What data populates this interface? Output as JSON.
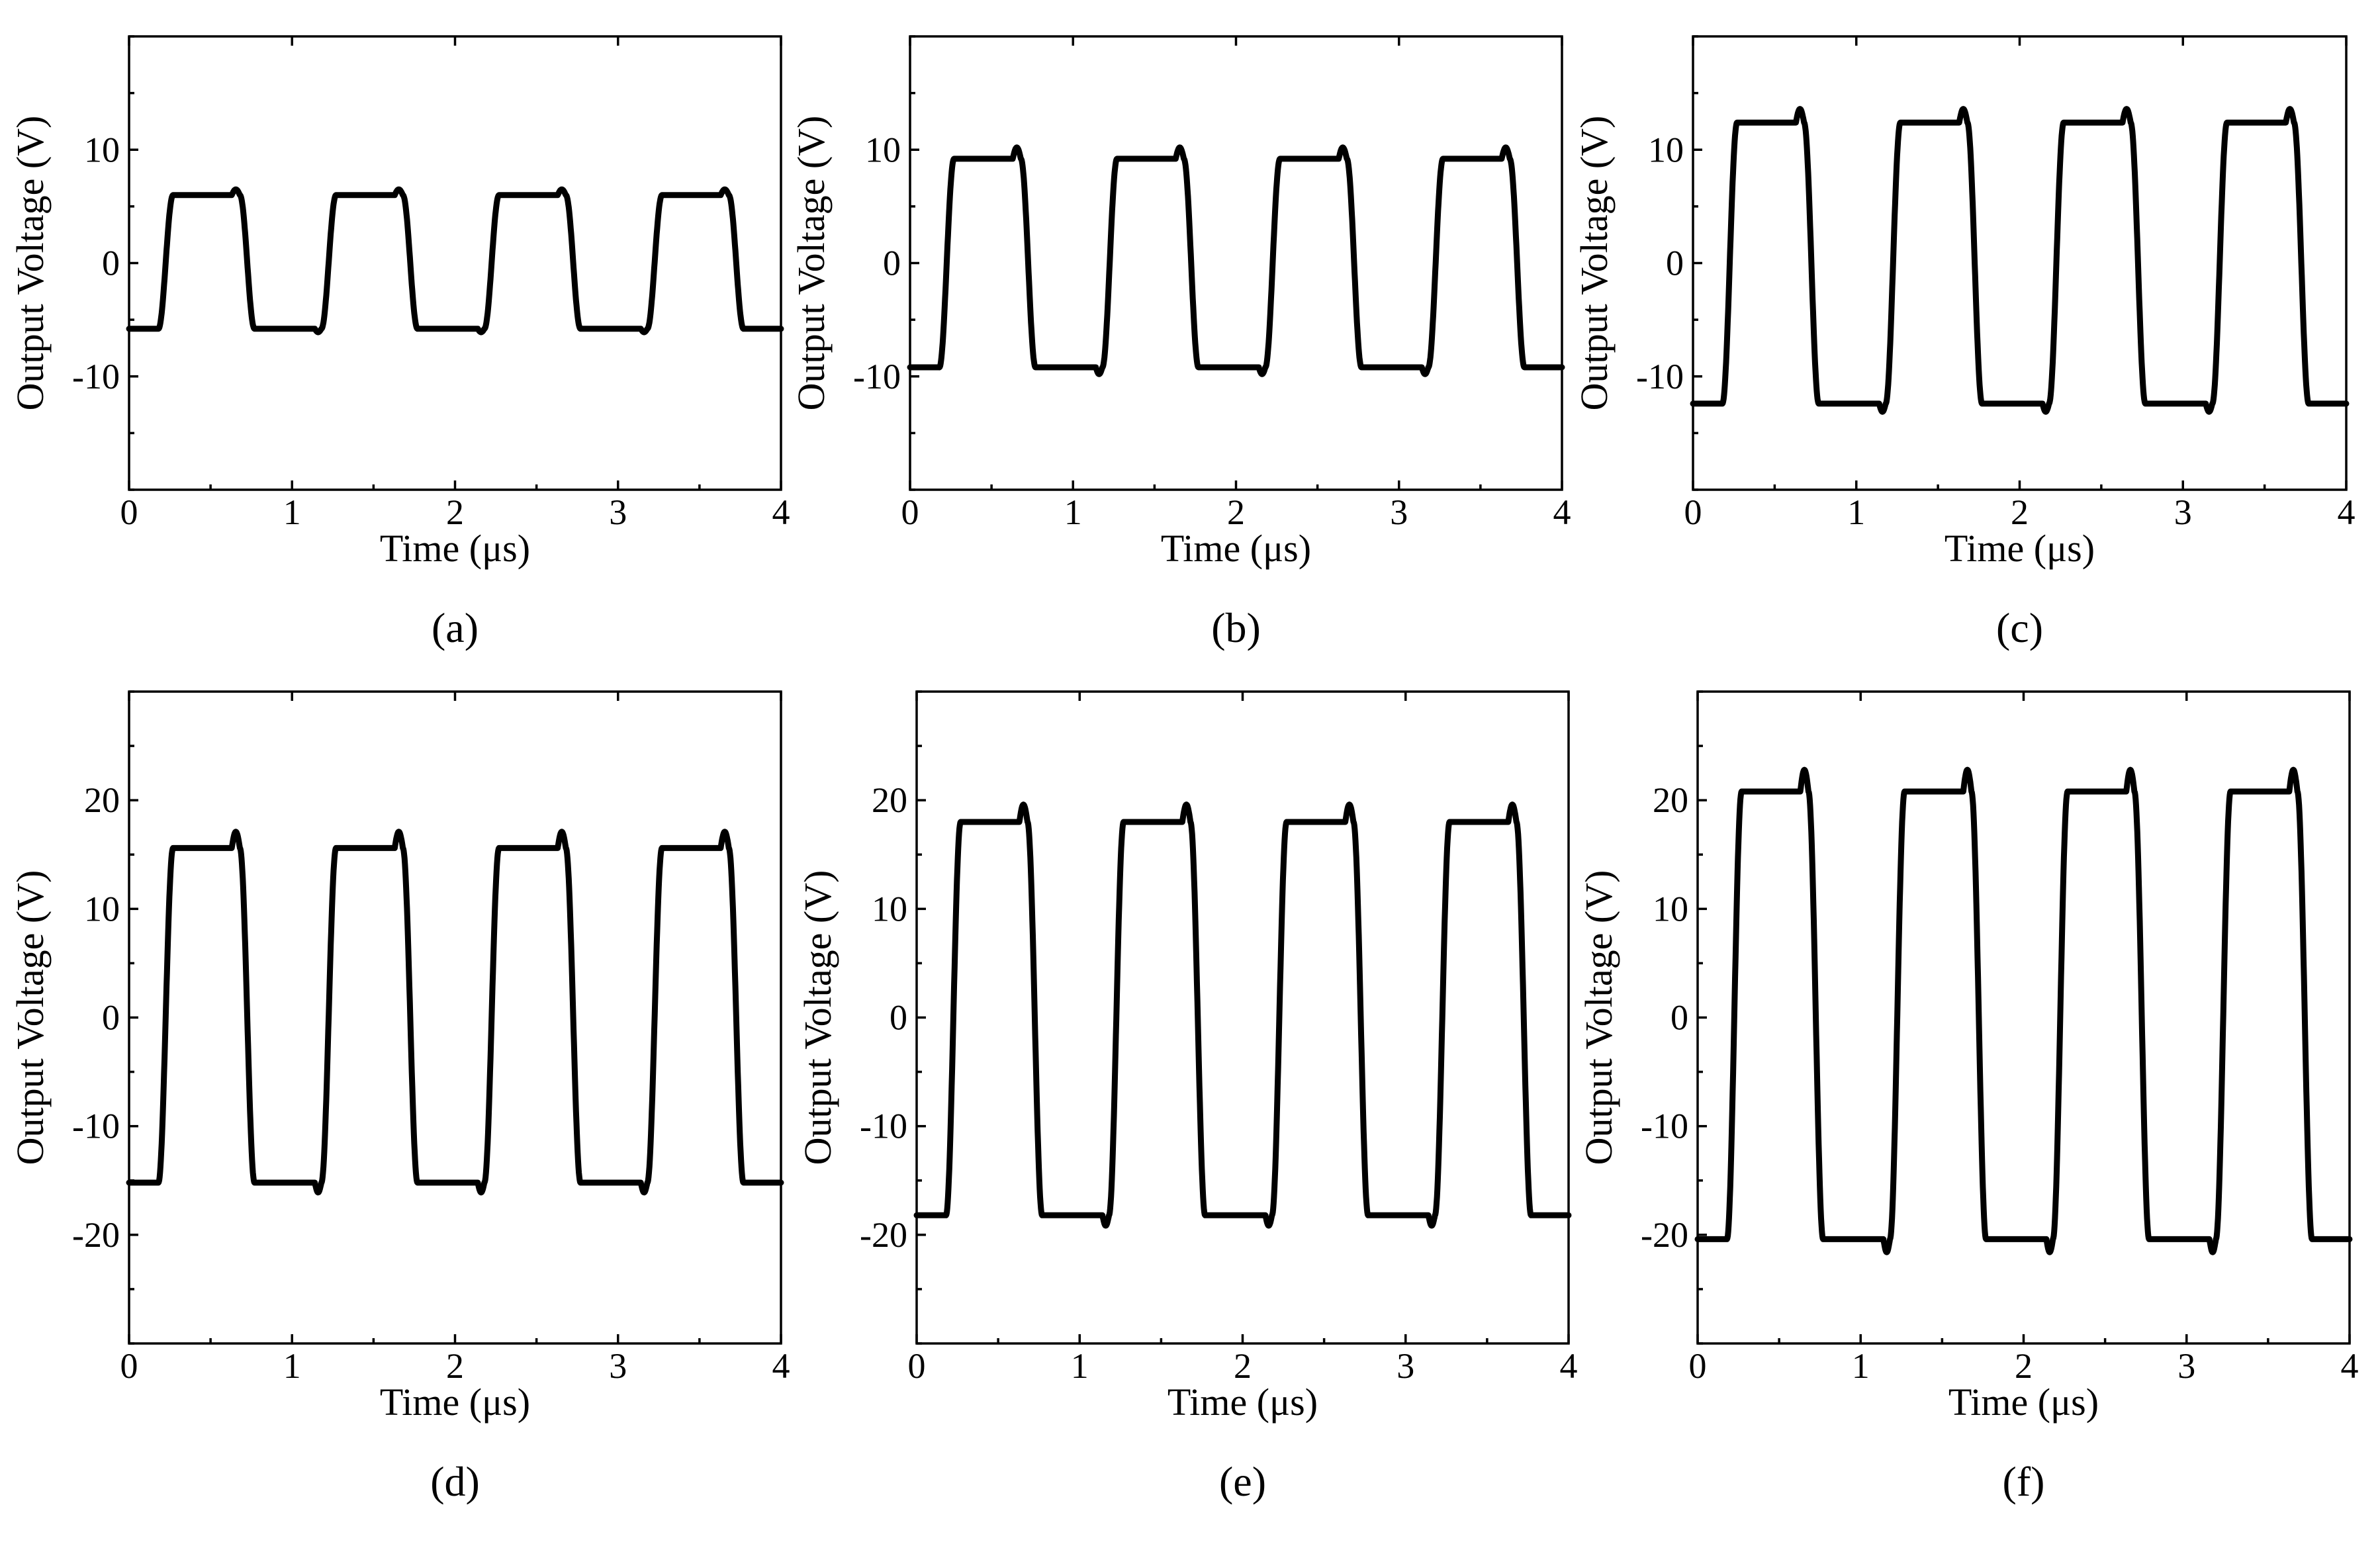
{
  "figure": {
    "panels": [
      "a",
      "b",
      "c",
      "d",
      "e",
      "f"
    ]
  },
  "chart_data": [
    {
      "id": "a",
      "type": "line",
      "caption": "(a)",
      "title": "",
      "xlabel": "Time (μs)",
      "ylabel": "Output Voltage (V)",
      "xlim": [
        0,
        4
      ],
      "ylim": [
        -20,
        20
      ],
      "xticks": [
        0,
        1,
        2,
        3,
        4
      ],
      "yticks": [
        -10,
        0,
        10
      ],
      "xtick_labels": [
        "0",
        "1",
        "2",
        "3",
        "4"
      ],
      "ytick_labels": [
        "-10",
        "0",
        "10"
      ],
      "grid": false,
      "series": [
        {
          "name": "output",
          "low": -5.8,
          "high": 6.0,
          "overshoot": 0.5,
          "period": 1.0,
          "rise_start": 0.18,
          "fall_start": 0.68
        }
      ]
    },
    {
      "id": "b",
      "type": "line",
      "caption": "(b)",
      "title": "",
      "xlabel": "Time (μs)",
      "ylabel": "Output Voltage (V)",
      "xlim": [
        0,
        4
      ],
      "ylim": [
        -20,
        20
      ],
      "xticks": [
        0,
        1,
        2,
        3,
        4
      ],
      "yticks": [
        -10,
        0,
        10
      ],
      "xtick_labels": [
        "0",
        "1",
        "2",
        "3",
        "4"
      ],
      "ytick_labels": [
        "-10",
        "0",
        "10"
      ],
      "grid": false,
      "series": [
        {
          "name": "output",
          "low": -9.2,
          "high": 9.2,
          "overshoot": 1.0,
          "period": 1.0,
          "rise_start": 0.18,
          "fall_start": 0.68
        }
      ]
    },
    {
      "id": "c",
      "type": "line",
      "caption": "(c)",
      "title": "",
      "xlabel": "Time (μs)",
      "ylabel": "Output Voltage (V)",
      "xlim": [
        0,
        4
      ],
      "ylim": [
        -20,
        20
      ],
      "xticks": [
        0,
        1,
        2,
        3,
        4
      ],
      "yticks": [
        -10,
        0,
        10
      ],
      "xtick_labels": [
        "0",
        "1",
        "2",
        "3",
        "4"
      ],
      "ytick_labels": [
        "-10",
        "0",
        "10"
      ],
      "grid": false,
      "series": [
        {
          "name": "output",
          "low": -12.4,
          "high": 12.4,
          "overshoot": 1.2,
          "period": 1.0,
          "rise_start": 0.18,
          "fall_start": 0.68
        }
      ]
    },
    {
      "id": "d",
      "type": "line",
      "caption": "(d)",
      "title": "",
      "xlabel": "Time (μs)",
      "ylabel": "Output Voltage (V)",
      "xlim": [
        0,
        4
      ],
      "ylim": [
        -30,
        30
      ],
      "xticks": [
        0,
        1,
        2,
        3,
        4
      ],
      "yticks": [
        -20,
        -10,
        0,
        10,
        20
      ],
      "xtick_labels": [
        "0",
        "1",
        "2",
        "3",
        "4"
      ],
      "ytick_labels": [
        "-20",
        "-10",
        "0",
        "10",
        "20"
      ],
      "grid": false,
      "series": [
        {
          "name": "output",
          "low": -15.2,
          "high": 15.6,
          "overshoot": 1.5,
          "period": 1.0,
          "rise_start": 0.18,
          "fall_start": 0.68
        }
      ]
    },
    {
      "id": "e",
      "type": "line",
      "caption": "(e)",
      "title": "",
      "xlabel": "Time (μs)",
      "ylabel": "Output Voltage (V)",
      "xlim": [
        0,
        4
      ],
      "ylim": [
        -30,
        30
      ],
      "xticks": [
        0,
        1,
        2,
        3,
        4
      ],
      "yticks": [
        -20,
        -10,
        0,
        10,
        20
      ],
      "xtick_labels": [
        "0",
        "1",
        "2",
        "3",
        "4"
      ],
      "ytick_labels": [
        "-20",
        "-10",
        "0",
        "10",
        "20"
      ],
      "grid": false,
      "series": [
        {
          "name": "output",
          "low": -18.2,
          "high": 18.0,
          "overshoot": 1.6,
          "period": 1.0,
          "rise_start": 0.18,
          "fall_start": 0.68
        }
      ]
    },
    {
      "id": "f",
      "type": "line",
      "caption": "(f)",
      "title": "",
      "xlabel": "Time (μs)",
      "ylabel": "Output Voltage (V)",
      "xlim": [
        0,
        4
      ],
      "ylim": [
        -30,
        30
      ],
      "xticks": [
        0,
        1,
        2,
        3,
        4
      ],
      "yticks": [
        -20,
        -10,
        0,
        10,
        20
      ],
      "xtick_labels": [
        "0",
        "1",
        "2",
        "3",
        "4"
      ],
      "ytick_labels": [
        "-20",
        "-10",
        "0",
        "10",
        "20"
      ],
      "grid": false,
      "series": [
        {
          "name": "output",
          "low": -20.4,
          "high": 20.8,
          "overshoot": 2.0,
          "period": 1.0,
          "rise_start": 0.18,
          "fall_start": 0.68
        }
      ]
    }
  ]
}
